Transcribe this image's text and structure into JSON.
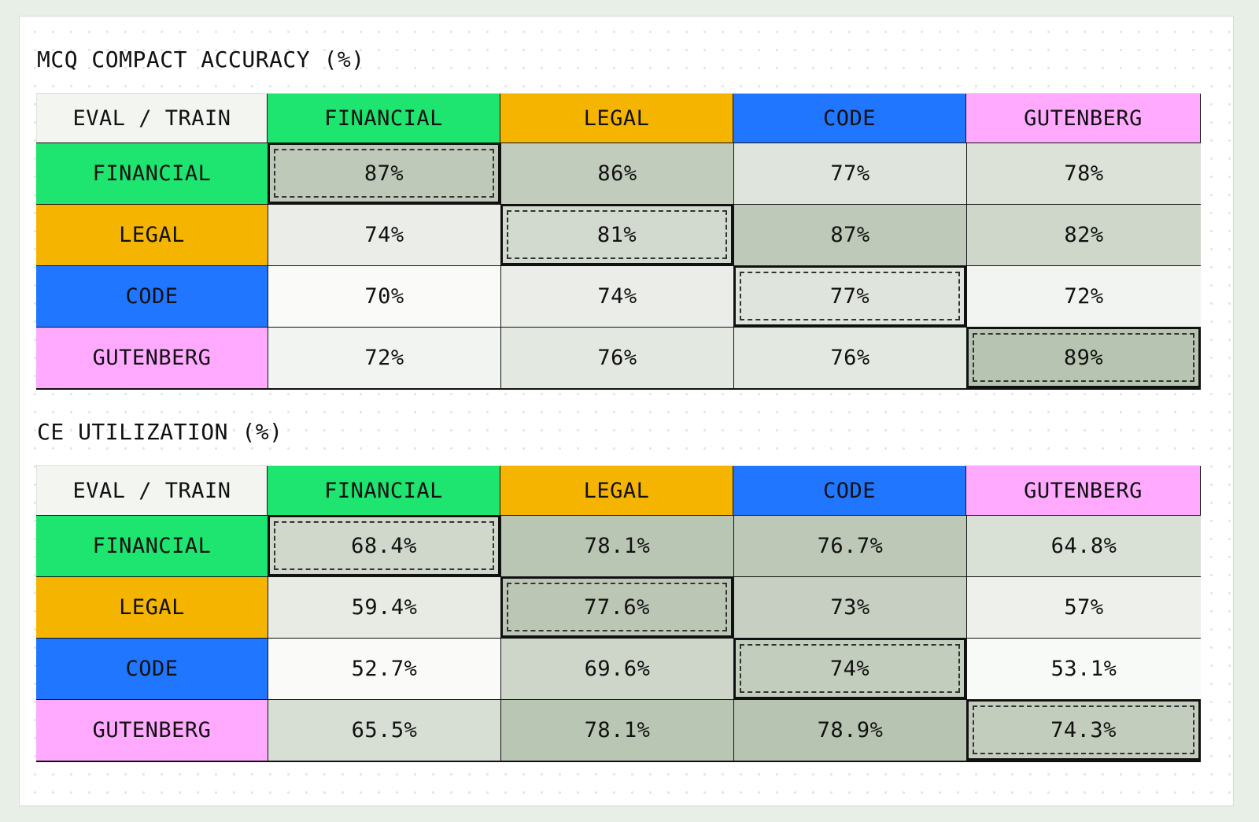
{
  "colors": {
    "financial": "#1de56f",
    "legal": "#f5b400",
    "code": "#2176ff",
    "gutenberg": "#ffaaff",
    "scale_low": "#fafbf9",
    "scale_high": "#b8c4b2"
  },
  "chart_data": [
    {
      "type": "heatmap",
      "title": "MCQ COMPACT ACCURACY (%)",
      "corner_label": "EVAL / TRAIN",
      "columns": [
        "FINANCIAL",
        "LEGAL",
        "CODE",
        "GUTENBERG"
      ],
      "rows": [
        "FINANCIAL",
        "LEGAL",
        "CODE",
        "GUTENBERG"
      ],
      "values": [
        [
          87,
          86,
          77,
          78
        ],
        [
          74,
          81,
          87,
          82
        ],
        [
          70,
          74,
          77,
          72
        ],
        [
          72,
          76,
          76,
          89
        ]
      ],
      "labels": [
        [
          "87%",
          "86%",
          "77%",
          "78%"
        ],
        [
          "74%",
          "81%",
          "87%",
          "82%"
        ],
        [
          "70%",
          "74%",
          "77%",
          "72%"
        ],
        [
          "72%",
          "76%",
          "76%",
          "89%"
        ]
      ],
      "highlight": "diagonal"
    },
    {
      "type": "heatmap",
      "title": "CE UTILIZATION (%)",
      "corner_label": "EVAL / TRAIN",
      "columns": [
        "FINANCIAL",
        "LEGAL",
        "CODE",
        "GUTENBERG"
      ],
      "rows": [
        "FINANCIAL",
        "LEGAL",
        "CODE",
        "GUTENBERG"
      ],
      "values": [
        [
          68.4,
          78.1,
          76.7,
          64.8
        ],
        [
          59.4,
          77.6,
          73,
          57
        ],
        [
          52.7,
          69.6,
          74,
          53.1
        ],
        [
          65.5,
          78.1,
          78.9,
          74.3
        ]
      ],
      "labels": [
        [
          "68.4%",
          "78.1%",
          "76.7%",
          "64.8%"
        ],
        [
          "59.4%",
          "77.6%",
          "73%",
          "57%"
        ],
        [
          "52.7%",
          "69.6%",
          "74%",
          "53.1%"
        ],
        [
          "65.5%",
          "78.1%",
          "78.9%",
          "74.3%"
        ]
      ],
      "highlight": "diagonal"
    }
  ]
}
